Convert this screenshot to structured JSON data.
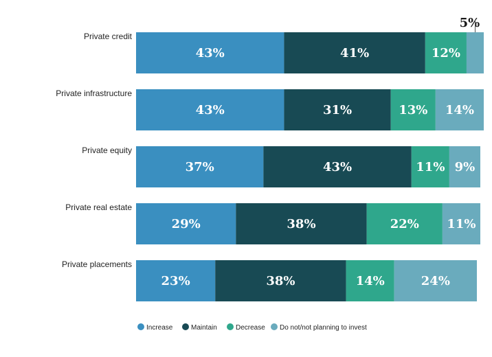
{
  "chart_data": {
    "type": "bar",
    "orientation": "horizontal",
    "stacked": true,
    "categories": [
      "Private credit",
      "Private infrastructure",
      "Private equity",
      "Private real estate",
      "Private placements"
    ],
    "series": [
      {
        "name": "Increase",
        "color": "#3a8fc0",
        "values": [
          43,
          43,
          37,
          29,
          23
        ]
      },
      {
        "name": "Maintain",
        "color": "#184a54",
        "values": [
          41,
          31,
          43,
          38,
          38
        ]
      },
      {
        "name": "Decrease",
        "color": "#2fa78c",
        "values": [
          12,
          13,
          11,
          22,
          14
        ]
      },
      {
        "name": "Do not/not planning to invest",
        "color": "#6aabbd",
        "values": [
          5,
          14,
          9,
          11,
          24
        ]
      }
    ],
    "value_labels": [
      [
        "43%",
        "41%",
        "12%",
        "5%"
      ],
      [
        "43%",
        "31%",
        "13%",
        "14%"
      ],
      [
        "37%",
        "43%",
        "11%",
        "9%"
      ],
      [
        "29%",
        "38%",
        "22%",
        "11%"
      ],
      [
        "23%",
        "38%",
        "14%",
        "24%"
      ]
    ],
    "xlim": [
      0,
      101
    ],
    "grid": false,
    "legend_position": "bottom"
  }
}
